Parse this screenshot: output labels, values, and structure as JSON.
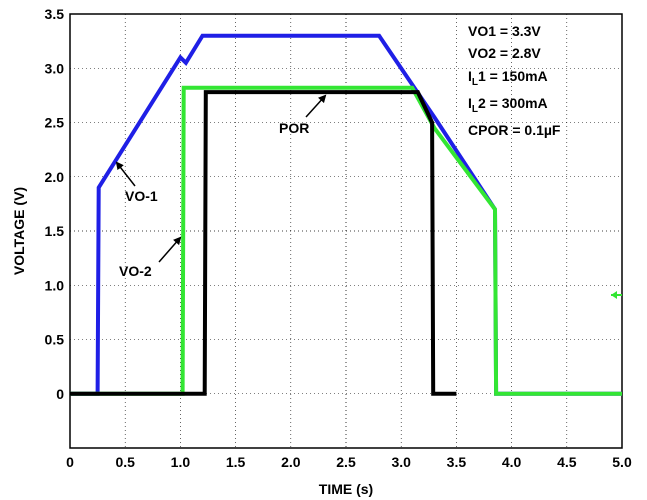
{
  "chart_data": {
    "type": "line",
    "xlabel": "TIME (s)",
    "ylabel": "VOLTAGE (V)",
    "xlim": [
      0,
      5.0
    ],
    "ylim": [
      -0.5,
      3.5
    ],
    "xticks": [
      "0",
      "0.5",
      "1.0",
      "1.5",
      "2.0",
      "2.5",
      "3.0",
      "3.5",
      "4.0",
      "4.5",
      "5.0"
    ],
    "yticks": [
      "0",
      "0.5",
      "1.0",
      "1.5",
      "2.0",
      "2.5",
      "3.0",
      "3.5"
    ],
    "grid": true,
    "series": [
      {
        "color": "#1f1fe6",
        "x": [
          0,
          0.25,
          0.26,
          1.0,
          1.05,
          1.2,
          2.8,
          3.3,
          3.85,
          3.86,
          5.0
        ],
        "y": [
          0,
          0,
          1.9,
          3.1,
          3.05,
          3.3,
          3.3,
          2.55,
          1.7,
          0,
          0
        ]
      },
      {
        "color": "#33e633",
        "x": [
          0,
          1.02,
          1.03,
          3.1,
          3.3,
          3.85,
          3.86,
          5.0
        ],
        "y": [
          0,
          0,
          2.82,
          2.82,
          2.45,
          1.7,
          0,
          0
        ]
      },
      {
        "color": "#000000",
        "x": [
          0,
          1.22,
          1.23,
          3.15,
          3.28,
          3.29,
          3.5
        ],
        "y": [
          0,
          0,
          2.78,
          2.78,
          2.5,
          0,
          0
        ]
      }
    ],
    "annotations": [
      "VO-1",
      "VO-2",
      "POR"
    ],
    "conditions": [
      "VO1 = 3.3V",
      "VO2 = 2.8V",
      "1 = 150mA",
      "2 = 300mA",
      "CPOR = 0.1µF"
    ],
    "colors": {
      "vo1": "#1f1fe6",
      "vo2": "#33e633",
      "por": "#000000"
    }
  }
}
